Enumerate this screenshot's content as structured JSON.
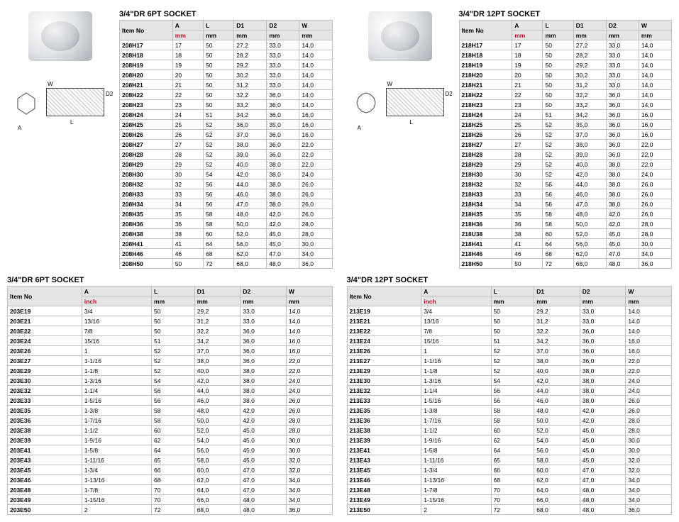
{
  "titles": {
    "t1": "3/4\"DR  6PT SOCKET",
    "t2": "3/4\"DR  6PT SOCKET",
    "t3": "3/4\"DR  12PT SOCKET",
    "t4": "3/4\"DR  12PT SOCKET"
  },
  "dim_labels": {
    "W": "W",
    "L": "L",
    "A": "A",
    "D": "D2"
  },
  "headers": {
    "item": "Item No",
    "A": "A",
    "L": "L",
    "D1": "D1",
    "D2": "D2",
    "W": "W"
  },
  "units": {
    "mm": "mm",
    "inch": "inch"
  },
  "table1": [
    [
      "208H17",
      "17",
      "50",
      "27,2",
      "33,0",
      "14,0"
    ],
    [
      "208H18",
      "18",
      "50",
      "28,2",
      "33,0",
      "14,0"
    ],
    [
      "208H19",
      "19",
      "50",
      "29,2",
      "33,0",
      "14,0"
    ],
    [
      "208H20",
      "20",
      "50",
      "30,2",
      "33,0",
      "14,0"
    ],
    [
      "208H21",
      "21",
      "50",
      "31,2",
      "33,0",
      "14,0"
    ],
    [
      "208H22",
      "22",
      "50",
      "32,2",
      "36,0",
      "14,0"
    ],
    [
      "208H23",
      "23",
      "50",
      "33,2",
      "36,0",
      "14,0"
    ],
    [
      "208H24",
      "24",
      "51",
      "34,2",
      "36,0",
      "16,0"
    ],
    [
      "208H25",
      "25",
      "52",
      "36,0",
      "35,0",
      "16,0"
    ],
    [
      "208H26",
      "26",
      "52",
      "37,0",
      "36,0",
      "16,0"
    ],
    [
      "208H27",
      "27",
      "52",
      "38,0",
      "36,0",
      "22,0"
    ],
    [
      "208H28",
      "28",
      "52",
      "39,0",
      "36,0",
      "22,0"
    ],
    [
      "208H29",
      "29",
      "52",
      "40,0",
      "38,0",
      "22,0"
    ],
    [
      "208H30",
      "30",
      "54",
      "42,0",
      "38,0",
      "24,0"
    ],
    [
      "208H32",
      "32",
      "56",
      "44,0",
      "38,0",
      "26,0"
    ],
    [
      "208H33",
      "33",
      "56",
      "46,0",
      "38,0",
      "26,0"
    ],
    [
      "208H34",
      "34",
      "56",
      "47,0",
      "38,0",
      "26,0"
    ],
    [
      "208H35",
      "35",
      "58",
      "48,0",
      "42,0",
      "26,0"
    ],
    [
      "208H36",
      "36",
      "58",
      "50,0",
      "42,0",
      "28,0"
    ],
    [
      "208H38",
      "38",
      "60",
      "52,0",
      "45,0",
      "28,0"
    ],
    [
      "208H41",
      "41",
      "64",
      "56,0",
      "45,0",
      "30,0"
    ],
    [
      "208H46",
      "46",
      "68",
      "62,0",
      "47,0",
      "34,0"
    ],
    [
      "208H50",
      "50",
      "72",
      "68,0",
      "48,0",
      "36,0"
    ]
  ],
  "table2": [
    [
      "203E19",
      "3/4",
      "50",
      "29,2",
      "33,0",
      "14,0"
    ],
    [
      "203E21",
      "13/16",
      "50",
      "31,2",
      "33,0",
      "14,0"
    ],
    [
      "203E22",
      "7/8",
      "50",
      "32,2",
      "36,0",
      "14,0"
    ],
    [
      "203E24",
      "15/16",
      "51",
      "34,2",
      "36,0",
      "16,0"
    ],
    [
      "203E26",
      "1",
      "52",
      "37,0",
      "36,0",
      "16,0"
    ],
    [
      "203E27",
      "1-1/16",
      "52",
      "38,0",
      "36,0",
      "22,0"
    ],
    [
      "203E29",
      "1-1/8",
      "52",
      "40,0",
      "38,0",
      "22,0"
    ],
    [
      "203E30",
      "1-3/16",
      "54",
      "42,0",
      "38,0",
      "24,0"
    ],
    [
      "203E32",
      "1-1/4",
      "56",
      "44,0",
      "38,0",
      "24,0"
    ],
    [
      "203E33",
      "1-5/16",
      "56",
      "46,0",
      "38,0",
      "26,0"
    ],
    [
      "203E35",
      "1-3/8",
      "58",
      "48,0",
      "42,0",
      "26,0"
    ],
    [
      "203E36",
      "1-7/16",
      "58",
      "50,0",
      "42,0",
      "28,0"
    ],
    [
      "203E38",
      "1-1/2",
      "60",
      "52,0",
      "45,0",
      "28,0"
    ],
    [
      "203E39",
      "1-9/16",
      "62",
      "54,0",
      "45,0",
      "30,0"
    ],
    [
      "203E41",
      "1-5/8",
      "64",
      "56,0",
      "45,0",
      "30,0"
    ],
    [
      "203E43",
      "1-11/16",
      "65",
      "58,0",
      "45,0",
      "32,0"
    ],
    [
      "203E45",
      "1-3/4",
      "66",
      "60,0",
      "47,0",
      "32,0"
    ],
    [
      "203E46",
      "1-13/16",
      "68",
      "62,0",
      "47,0",
      "34,0"
    ],
    [
      "203E48",
      "1-7/8",
      "70",
      "64,0",
      "47,0",
      "34,0"
    ],
    [
      "203E49",
      "1-15/16",
      "70",
      "66,0",
      "48,0",
      "34,0"
    ],
    [
      "203E50",
      "2",
      "72",
      "68,0",
      "48,0",
      "36,0"
    ]
  ],
  "table3": [
    [
      "218H17",
      "17",
      "50",
      "27,2",
      "33,0",
      "14,0"
    ],
    [
      "218H18",
      "18",
      "50",
      "28,2",
      "33,0",
      "14,0"
    ],
    [
      "218H19",
      "19",
      "50",
      "29,2",
      "33,0",
      "14,0"
    ],
    [
      "218H20",
      "20",
      "50",
      "30,2",
      "33,0",
      "14,0"
    ],
    [
      "218H21",
      "21",
      "50",
      "31,2",
      "33,0",
      "14,0"
    ],
    [
      "218H22",
      "22",
      "50",
      "32,2",
      "36,0",
      "14,0"
    ],
    [
      "218H23",
      "23",
      "50",
      "33,2",
      "36,0",
      "14,0"
    ],
    [
      "218H24",
      "24",
      "51",
      "34,2",
      "36,0",
      "16,0"
    ],
    [
      "218H25",
      "25",
      "52",
      "35,0",
      "36,0",
      "16,0"
    ],
    [
      "218H26",
      "26",
      "52",
      "37,0",
      "36,0",
      "16,0"
    ],
    [
      "218H27",
      "27",
      "52",
      "38,0",
      "36,0",
      "22,0"
    ],
    [
      "218H28",
      "28",
      "52",
      "39,0",
      "36,0",
      "22,0"
    ],
    [
      "218H29",
      "29",
      "52",
      "40,0",
      "38,0",
      "22,0"
    ],
    [
      "218H30",
      "30",
      "52",
      "42,0",
      "38,0",
      "24,0"
    ],
    [
      "218H32",
      "32",
      "56",
      "44,0",
      "38,0",
      "26,0"
    ],
    [
      "218H33",
      "33",
      "56",
      "46,0",
      "38,0",
      "26,0"
    ],
    [
      "218H34",
      "34",
      "56",
      "47,0",
      "38,0",
      "26,0"
    ],
    [
      "218H35",
      "35",
      "58",
      "48,0",
      "42,0",
      "26,0"
    ],
    [
      "218H36",
      "36",
      "58",
      "50,0",
      "42,0",
      "28,0"
    ],
    [
      "218U38",
      "38",
      "60",
      "52,0",
      "45,0",
      "28,0"
    ],
    [
      "218H41",
      "41",
      "64",
      "56,0",
      "45,0",
      "30,0"
    ],
    [
      "218H46",
      "46",
      "68",
      "62,0",
      "47,0",
      "34,0"
    ],
    [
      "218H50",
      "50",
      "72",
      "68,0",
      "48,0",
      "36,0"
    ]
  ],
  "table4": [
    [
      "213E19",
      "3/4",
      "50",
      "29,2",
      "33,0",
      "14,0"
    ],
    [
      "213E21",
      "13/16",
      "50",
      "31,2",
      "33,0",
      "14,0"
    ],
    [
      "213E22",
      "7/8",
      "50",
      "32,2",
      "36,0",
      "14,0"
    ],
    [
      "213E24",
      "15/16",
      "51",
      "34,2",
      "36,0",
      "16,0"
    ],
    [
      "213E26",
      "1",
      "52",
      "37,0",
      "36,0",
      "16,0"
    ],
    [
      "213E27",
      "1-1/16",
      "52",
      "38,0",
      "36,0",
      "22,0"
    ],
    [
      "213E29",
      "1-1/8",
      "52",
      "40,0",
      "38,0",
      "22,0"
    ],
    [
      "213E30",
      "1-3/16",
      "54",
      "42,0",
      "38,0",
      "24,0"
    ],
    [
      "213E32",
      "1-1/4",
      "56",
      "44,0",
      "38,0",
      "24,0"
    ],
    [
      "213E33",
      "1-5/16",
      "56",
      "46,0",
      "38,0",
      "26,0"
    ],
    [
      "213E35",
      "1-3/8",
      "58",
      "48,0",
      "42,0",
      "26,0"
    ],
    [
      "213E36",
      "1-7/16",
      "58",
      "50,0",
      "42,0",
      "28,0"
    ],
    [
      "213E38",
      "1-1/2",
      "60",
      "52,0",
      "45,0",
      "28,0"
    ],
    [
      "213E39",
      "1-9/16",
      "62",
      "54,0",
      "45,0",
      "30,0"
    ],
    [
      "213E41",
      "1-5/8",
      "64",
      "56,0",
      "45,0",
      "30,0"
    ],
    [
      "213E43",
      "1-11/16",
      "65",
      "58,0",
      "45,0",
      "32,0"
    ],
    [
      "213E45",
      "1-3/4",
      "66",
      "60,0",
      "47,0",
      "32,0"
    ],
    [
      "213E46",
      "1-13/16",
      "68",
      "62,0",
      "47,0",
      "34,0"
    ],
    [
      "213E48",
      "1-7/8",
      "70",
      "64,0",
      "48,0",
      "34,0"
    ],
    [
      "213E49",
      "1-15/16",
      "70",
      "66,0",
      "48,0",
      "34,0"
    ],
    [
      "213E50",
      "2",
      "72",
      "68,0",
      "48,0",
      "36,0"
    ]
  ]
}
